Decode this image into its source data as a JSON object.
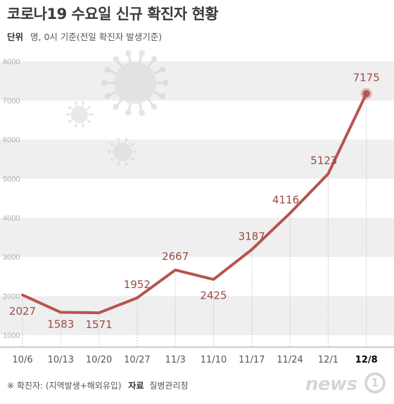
{
  "header": {
    "title": "코로나19 수요일 신규 확진자 현황",
    "unit_label": "단위",
    "unit_text": "명, 0시 기준(전일 확진자 발생기준)"
  },
  "footer": {
    "note": "※ 확진자: (지역발생+해외유입)",
    "source_label": "자료",
    "source": "질병관리청"
  },
  "brand": {
    "name": "news",
    "badge": "1"
  },
  "colors": {
    "line": "#b85450",
    "band": "#efefef",
    "label": "#9a4a47",
    "axis_text": "#555555",
    "highlight": "#000000"
  },
  "chart_data": {
    "type": "line",
    "title": "코로나19 수요일 신규 확진자 현황",
    "xlabel": "",
    "ylabel": "",
    "categories": [
      "10/6",
      "10/13",
      "10/20",
      "10/27",
      "11/3",
      "11/10",
      "11/17",
      "11/24",
      "12/1",
      "12/8"
    ],
    "series": [
      {
        "values": [
          2027,
          1583,
          1571,
          1952,
          2667,
          2425,
          3187,
          4116,
          5123,
          7175
        ]
      }
    ],
    "y_ticks": [
      1000,
      2000,
      3000,
      4000,
      5000,
      6000,
      7000,
      8000
    ],
    "ylim": [
      1000,
      8000
    ],
    "highlight_last": true,
    "grid": "alternating horizontal bands",
    "legend": "none"
  }
}
